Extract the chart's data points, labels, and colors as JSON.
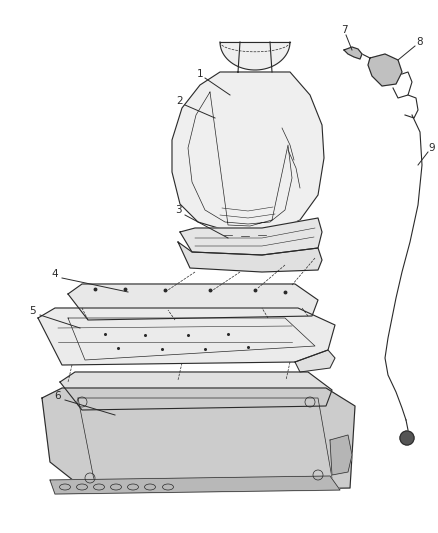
{
  "background_color": "#ffffff",
  "line_color": "#2a2a2a",
  "label_color": "#111111",
  "label_fontsize": 7.5,
  "line_width": 0.8,
  "fill_light": "#efefef",
  "fill_mid": "#e0e0e0",
  "fill_dark": "#cccccc"
}
